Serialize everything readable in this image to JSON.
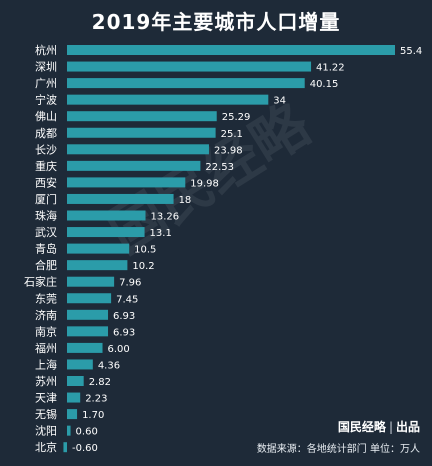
{
  "watermark": "国民经略",
  "brand": {
    "name": "国民经略",
    "suffix": "出品"
  },
  "source": "数据来源：各地统计部门  单位：万人",
  "colors": {
    "background": "#1e2a38",
    "bar": "#2b9ca9",
    "text": "#ffffff"
  },
  "chart_data": {
    "type": "bar",
    "orientation": "horizontal",
    "title": "2019年主要城市人口增量",
    "categories": [
      "杭州",
      "深圳",
      "广州",
      "宁波",
      "佛山",
      "成都",
      "长沙",
      "重庆",
      "西安",
      "厦门",
      "珠海",
      "武汉",
      "青岛",
      "合肥",
      "石家庄",
      "东莞",
      "济南",
      "南京",
      "福州",
      "上海",
      "苏州",
      "天津",
      "无锡",
      "沈阳",
      "北京"
    ],
    "values": [
      55.4,
      41.22,
      40.15,
      34,
      25.29,
      25.1,
      23.98,
      22.53,
      19.98,
      18,
      13.26,
      13.1,
      10.5,
      10.2,
      7.96,
      7.45,
      6.93,
      6.93,
      6.0,
      4.36,
      2.82,
      2.23,
      1.7,
      0.6,
      -0.6
    ],
    "value_labels": [
      "55.4",
      "41.22",
      "40.15",
      "34",
      "25.29",
      "25.1",
      "23.98",
      "22.53",
      "19.98",
      "18",
      "13.26",
      "13.1",
      "10.5",
      "10.2",
      "7.96",
      "7.45",
      "6.93",
      "6.93",
      "6.00",
      "4.36",
      "2.82",
      "2.23",
      "1.70",
      "0.60",
      "-0.60"
    ],
    "unit": "万人",
    "xlim": [
      -0.6,
      55.4
    ],
    "grid": false,
    "legend": "none"
  }
}
